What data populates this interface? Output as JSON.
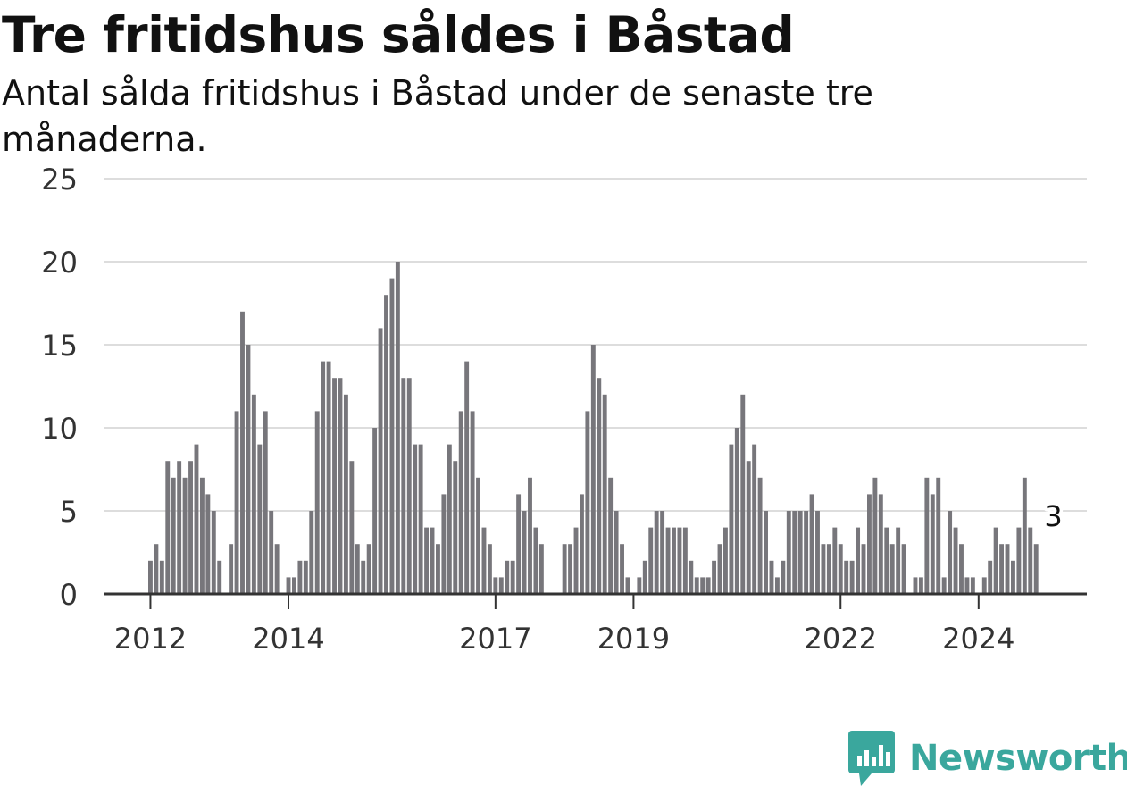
{
  "title": "Tre fritidshus såldes i Båstad",
  "subtitle": "Antal sålda fritidshus i Båstad under de senaste tre månaderna.",
  "brand": {
    "name": "Newsworthy",
    "icon": "newsworthy-logo-icon",
    "color": "#3aa79d"
  },
  "chart_data": {
    "type": "bar",
    "title": "Tre fritidshus såldes i Båstad",
    "subtitle": "Antal sålda fritidshus i Båstad under de senaste tre månaderna.",
    "xlabel": "",
    "ylabel": "",
    "ylim": [
      0,
      25
    ],
    "yticks": [
      "0",
      "5",
      "10",
      "15",
      "20",
      "25"
    ],
    "xticks": [
      {
        "label": "2012",
        "date": "2012-01"
      },
      {
        "label": "2014",
        "date": "2014-01"
      },
      {
        "label": "2017",
        "date": "2017-01"
      },
      {
        "label": "2019",
        "date": "2019-01"
      },
      {
        "label": "2022",
        "date": "2022-01"
      },
      {
        "label": "2024",
        "date": "2024-01"
      }
    ],
    "grid": true,
    "colors": {
      "bar": "#77767b",
      "highlight": "#1aa59a",
      "grid": "#dddddd",
      "axis": "#333333"
    },
    "start_month": "2011-05",
    "values": [
      0,
      0,
      0,
      0,
      0,
      0,
      0,
      0,
      2,
      3,
      2,
      8,
      7,
      8,
      7,
      8,
      9,
      7,
      6,
      5,
      2,
      0,
      3,
      11,
      17,
      15,
      12,
      9,
      11,
      5,
      3,
      0,
      1,
      1,
      2,
      2,
      5,
      11,
      14,
      14,
      13,
      13,
      12,
      8,
      3,
      2,
      3,
      10,
      16,
      18,
      19,
      20,
      13,
      13,
      9,
      9,
      4,
      4,
      3,
      6,
      9,
      8,
      11,
      14,
      11,
      7,
      4,
      3,
      1,
      1,
      2,
      2,
      6,
      5,
      7,
      4,
      3,
      0,
      0,
      0,
      3,
      3,
      4,
      6,
      11,
      15,
      13,
      12,
      7,
      5,
      3,
      1,
      0,
      1,
      2,
      4,
      5,
      5,
      4,
      4,
      4,
      4,
      2,
      1,
      1,
      1,
      2,
      3,
      4,
      9,
      10,
      12,
      8,
      9,
      7,
      5,
      2,
      1,
      2,
      5,
      5,
      5,
      5,
      6,
      5,
      3,
      3,
      4,
      3,
      2,
      2,
      4,
      3,
      6,
      7,
      6,
      4,
      3,
      4,
      3,
      0,
      1,
      1,
      7,
      6,
      7,
      1,
      5,
      4,
      3,
      1,
      1,
      0,
      1,
      2,
      4,
      3,
      3,
      2,
      4,
      7,
      4,
      3
    ],
    "highlight": {
      "date": "2025-02",
      "value": 3,
      "label": "3"
    }
  }
}
